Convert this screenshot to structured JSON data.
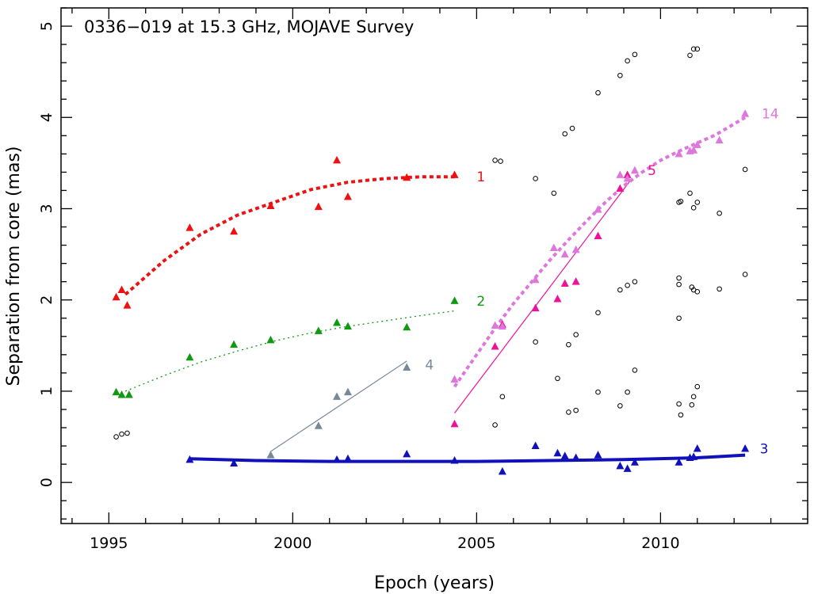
{
  "chart_data": {
    "type": "scatter",
    "title": "0336−019 at 15.3 GHz, MOJAVE Survey",
    "xlabel": "Epoch (years)",
    "ylabel": "Separation from core (mas)",
    "xlim": [
      1993.7,
      2014.0
    ],
    "ylim": [
      -0.45,
      5.2
    ],
    "x_ticks": [
      "1995",
      "2000",
      "2005",
      "2010"
    ],
    "x_tick_values": [
      1995,
      2000,
      2005,
      2010
    ],
    "y_ticks": [
      "0",
      "1",
      "2",
      "3",
      "4",
      "5"
    ],
    "y_tick_values": [
      0,
      1,
      2,
      3,
      4,
      5
    ],
    "series": [
      {
        "name": "1",
        "color": "#ee1111",
        "marker": "triangle",
        "points": [
          [
            1995.2,
            2.03
          ],
          [
            1995.35,
            2.11
          ],
          [
            1995.5,
            1.94
          ],
          [
            1997.2,
            2.79
          ],
          [
            1998.4,
            2.75
          ],
          [
            1999.4,
            3.03
          ],
          [
            2000.7,
            3.02
          ],
          [
            2001.2,
            3.53
          ],
          [
            2001.5,
            3.13
          ],
          [
            2003.1,
            3.34
          ],
          [
            2004.4,
            3.37
          ]
        ],
        "fit": {
          "style": "dashed-thick",
          "points": [
            [
              1995.45,
              2.06
            ],
            [
              1996.5,
              2.43
            ],
            [
              1997.5,
              2.72
            ],
            [
              1998.5,
              2.93
            ],
            [
              1999.5,
              3.07
            ],
            [
              2000.5,
              3.21
            ],
            [
              2001.5,
              3.29
            ],
            [
              2002.5,
              3.33
            ],
            [
              2003.5,
              3.35
            ],
            [
              2004.4,
              3.35
            ]
          ]
        }
      },
      {
        "name": "2",
        "color": "#119911",
        "marker": "triangle",
        "points": [
          [
            1995.2,
            0.99
          ],
          [
            1995.35,
            0.96
          ],
          [
            1995.55,
            0.96
          ],
          [
            1997.2,
            1.37
          ],
          [
            1998.4,
            1.51
          ],
          [
            1999.4,
            1.56
          ],
          [
            2000.7,
            1.66
          ],
          [
            2001.2,
            1.75
          ],
          [
            2001.5,
            1.71
          ],
          [
            2003.1,
            1.7
          ],
          [
            2004.4,
            1.99
          ]
        ],
        "fit": {
          "style": "dotted-thin",
          "points": [
            [
              1995.45,
              1.0
            ],
            [
              1996.5,
              1.17
            ],
            [
              1997.5,
              1.32
            ],
            [
              1998.5,
              1.44
            ],
            [
              1999.5,
              1.55
            ],
            [
              2000.5,
              1.64
            ],
            [
              2001.5,
              1.71
            ],
            [
              2002.5,
              1.77
            ],
            [
              2003.5,
              1.83
            ],
            [
              2004.4,
              1.88
            ]
          ]
        }
      },
      {
        "name": "3",
        "color": "#1111bb",
        "marker": "triangle",
        "points": [
          [
            1997.2,
            0.25
          ],
          [
            1998.4,
            0.21
          ],
          [
            2001.2,
            0.25
          ],
          [
            2001.5,
            0.26
          ],
          [
            2003.1,
            0.31
          ],
          [
            2004.4,
            0.24
          ],
          [
            2005.7,
            0.12
          ],
          [
            2006.6,
            0.4
          ],
          [
            2007.2,
            0.32
          ],
          [
            2007.4,
            0.29
          ],
          [
            2007.7,
            0.27
          ],
          [
            2008.3,
            0.3
          ],
          [
            2008.9,
            0.18
          ],
          [
            2009.1,
            0.15
          ],
          [
            2009.3,
            0.22
          ],
          [
            2010.5,
            0.22
          ],
          [
            2010.8,
            0.27
          ],
          [
            2010.9,
            0.28
          ],
          [
            2011.0,
            0.37
          ],
          [
            2012.3,
            0.37
          ]
        ],
        "fit": {
          "style": "solid-thick",
          "points": [
            [
              1997.2,
              0.26
            ],
            [
              1999.0,
              0.24
            ],
            [
              2001.0,
              0.23
            ],
            [
              2003.0,
              0.23
            ],
            [
              2005.0,
              0.23
            ],
            [
              2007.0,
              0.24
            ],
            [
              2009.0,
              0.25
            ],
            [
              2011.0,
              0.27
            ],
            [
              2012.3,
              0.3
            ]
          ]
        }
      },
      {
        "name": "4",
        "color": "#778899",
        "marker": "triangle",
        "points": [
          [
            1999.4,
            0.3
          ],
          [
            2000.7,
            0.62
          ],
          [
            2001.2,
            0.94
          ],
          [
            2001.5,
            0.99
          ],
          [
            2003.1,
            1.26
          ]
        ],
        "fit": {
          "style": "solid-thin",
          "points": [
            [
              1999.4,
              0.34
            ],
            [
              2003.1,
              1.33
            ]
          ]
        }
      },
      {
        "name": "5",
        "color": "#ee1199",
        "marker": "triangle",
        "points": [
          [
            2004.4,
            0.64
          ],
          [
            2005.5,
            1.49
          ],
          [
            2005.7,
            1.73
          ],
          [
            2006.6,
            1.91
          ],
          [
            2007.2,
            2.01
          ],
          [
            2007.4,
            2.18
          ],
          [
            2007.7,
            2.2
          ],
          [
            2008.3,
            2.7
          ],
          [
            2008.9,
            3.22
          ],
          [
            2009.1,
            3.37
          ]
        ],
        "fit": {
          "style": "solid-thin",
          "points": [
            [
              2004.4,
              0.76
            ],
            [
              2009.2,
              3.32
            ]
          ]
        }
      },
      {
        "name": "14",
        "color": "#dd77dd",
        "marker": "triangle",
        "points": [
          [
            2004.4,
            1.13
          ],
          [
            2005.5,
            1.72
          ],
          [
            2005.7,
            1.71
          ],
          [
            2006.6,
            2.22
          ],
          [
            2007.1,
            2.57
          ],
          [
            2007.4,
            2.5
          ],
          [
            2007.7,
            2.55
          ],
          [
            2008.3,
            2.99
          ],
          [
            2008.9,
            3.37
          ],
          [
            2009.1,
            3.33
          ],
          [
            2009.3,
            3.42
          ],
          [
            2010.5,
            3.6
          ],
          [
            2010.8,
            3.63
          ],
          [
            2010.9,
            3.64
          ],
          [
            2011.0,
            3.7
          ],
          [
            2011.6,
            3.75
          ],
          [
            2012.3,
            4.04
          ]
        ],
        "fit": {
          "style": "dashed-thick",
          "points": [
            [
              2004.4,
              1.05
            ],
            [
              2005.0,
              1.4
            ],
            [
              2005.5,
              1.69
            ],
            [
              2006.0,
              1.96
            ],
            [
              2006.5,
              2.2
            ],
            [
              2007.0,
              2.44
            ],
            [
              2007.5,
              2.66
            ],
            [
              2008.0,
              2.87
            ],
            [
              2008.5,
              3.07
            ],
            [
              2009.0,
              3.25
            ],
            [
              2009.5,
              3.4
            ],
            [
              2010.0,
              3.53
            ],
            [
              2010.5,
              3.63
            ],
            [
              2011.0,
              3.72
            ],
            [
              2011.5,
              3.81
            ],
            [
              2012.3,
              4.0
            ]
          ]
        }
      }
    ],
    "unassigned": {
      "color": "#000000",
      "marker": "open-circle",
      "points": [
        [
          1995.2,
          0.5
        ],
        [
          1995.35,
          0.53
        ],
        [
          1995.5,
          0.54
        ],
        [
          2005.5,
          3.53
        ],
        [
          2005.65,
          3.52
        ],
        [
          2005.5,
          0.63
        ],
        [
          2005.7,
          0.94
        ],
        [
          2006.6,
          3.33
        ],
        [
          2006.6,
          1.54
        ],
        [
          2007.1,
          3.17
        ],
        [
          2007.2,
          1.14
        ],
        [
          2007.4,
          3.82
        ],
        [
          2007.5,
          1.51
        ],
        [
          2007.6,
          3.88
        ],
        [
          2007.7,
          1.62
        ],
        [
          2007.5,
          0.77
        ],
        [
          2007.7,
          0.79
        ],
        [
          2008.3,
          4.27
        ],
        [
          2008.3,
          1.86
        ],
        [
          2008.3,
          0.99
        ],
        [
          2008.9,
          4.46
        ],
        [
          2008.9,
          2.11
        ],
        [
          2008.9,
          0.84
        ],
        [
          2009.1,
          4.62
        ],
        [
          2009.1,
          2.16
        ],
        [
          2009.1,
          0.99
        ],
        [
          2009.3,
          4.69
        ],
        [
          2009.3,
          2.2
        ],
        [
          2009.3,
          1.23
        ],
        [
          2010.5,
          3.07
        ],
        [
          2010.55,
          3.08
        ],
        [
          2010.5,
          2.24
        ],
        [
          2010.5,
          2.17
        ],
        [
          2010.5,
          1.8
        ],
        [
          2010.5,
          0.86
        ],
        [
          2010.55,
          0.74
        ],
        [
          2010.8,
          4.68
        ],
        [
          2010.9,
          4.75
        ],
        [
          2011.0,
          4.75
        ],
        [
          2010.8,
          3.17
        ],
        [
          2010.9,
          3.01
        ],
        [
          2011.0,
          3.07
        ],
        [
          2010.85,
          2.14
        ],
        [
          2010.9,
          2.11
        ],
        [
          2011.0,
          2.09
        ],
        [
          2010.85,
          0.85
        ],
        [
          2010.9,
          0.94
        ],
        [
          2011.0,
          1.05
        ],
        [
          2011.6,
          2.95
        ],
        [
          2011.6,
          2.12
        ],
        [
          2012.3,
          3.43
        ],
        [
          2012.3,
          2.28
        ]
      ]
    }
  }
}
